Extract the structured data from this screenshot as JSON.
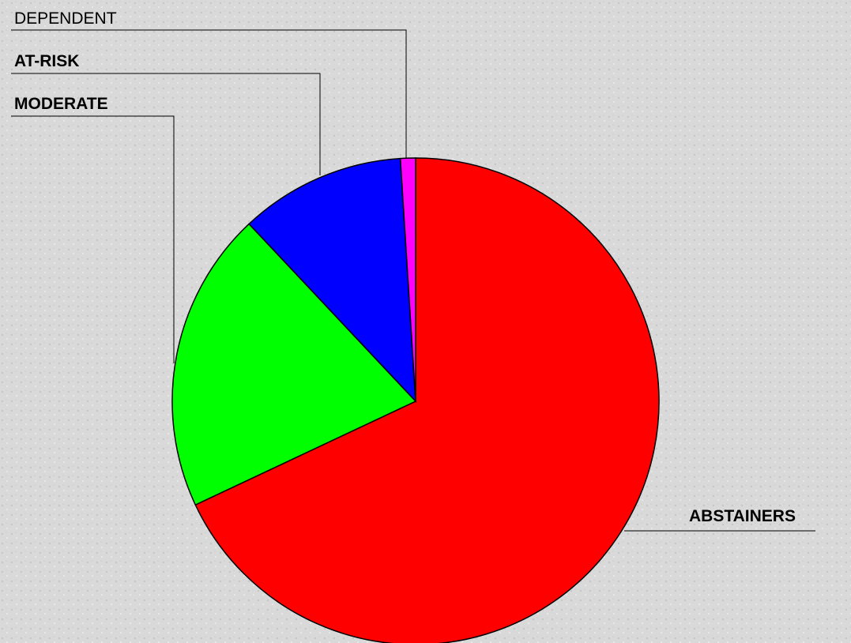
{
  "chart_data": {
    "type": "pie",
    "categories": [
      "ABSTAINERS",
      "MODERATE",
      "AT-RISK",
      "DEPENDENT"
    ],
    "values": [
      68,
      20,
      11,
      1
    ],
    "colors": [
      "#ff0000",
      "#00ff00",
      "#0000ff",
      "#ff00ff"
    ]
  }
}
